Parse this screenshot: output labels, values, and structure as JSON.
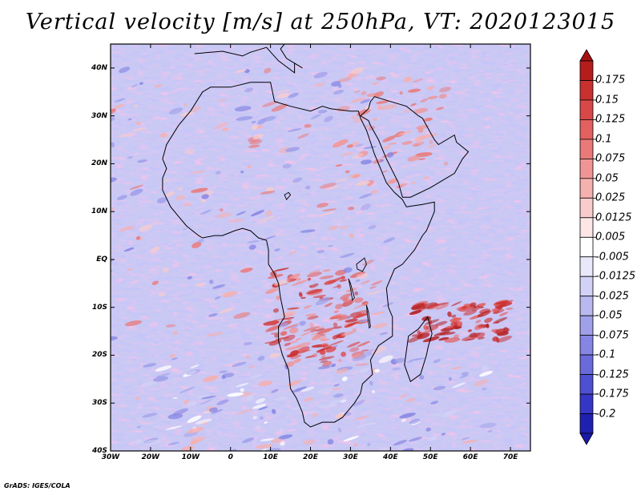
{
  "title": "Vertical velocity [m/s] at 250hPa, VT: 2020123015",
  "credit": "GrADS: IGES/COLA",
  "map": {
    "lat_range": [
      -40,
      45
    ],
    "lon_range": [
      -30,
      75
    ],
    "lat_ticks": [
      {
        "value": 40,
        "label": "40N"
      },
      {
        "value": 30,
        "label": "30N"
      },
      {
        "value": 20,
        "label": "20N"
      },
      {
        "value": 10,
        "label": "10N"
      },
      {
        "value": 0,
        "label": "EQ"
      },
      {
        "value": -10,
        "label": "10S"
      },
      {
        "value": -20,
        "label": "20S"
      },
      {
        "value": -30,
        "label": "30S"
      },
      {
        "value": -40,
        "label": "40S"
      }
    ],
    "lon_ticks": [
      {
        "value": -30,
        "label": "30W"
      },
      {
        "value": -20,
        "label": "20W"
      },
      {
        "value": -10,
        "label": "10W"
      },
      {
        "value": 0,
        "label": "0"
      },
      {
        "value": 10,
        "label": "10E"
      },
      {
        "value": 20,
        "label": "20E"
      },
      {
        "value": 30,
        "label": "30E"
      },
      {
        "value": 40,
        "label": "40E"
      },
      {
        "value": 50,
        "label": "50E"
      },
      {
        "value": 60,
        "label": "60E"
      },
      {
        "value": 70,
        "label": "70E"
      }
    ],
    "coastline": [
      [
        -17,
        21
      ],
      [
        -16,
        24
      ],
      [
        -13,
        28
      ],
      [
        -10,
        31
      ],
      [
        -7,
        35
      ],
      [
        -5,
        36
      ],
      [
        0,
        36
      ],
      [
        5,
        37
      ],
      [
        10,
        37
      ],
      [
        11,
        33
      ],
      [
        15,
        32
      ],
      [
        20,
        31
      ],
      [
        23,
        32
      ],
      [
        25,
        31.5
      ],
      [
        30,
        31
      ],
      [
        32,
        31
      ],
      [
        32.5,
        29.5
      ],
      [
        34,
        27
      ],
      [
        36,
        22
      ],
      [
        37,
        20
      ],
      [
        38,
        18
      ],
      [
        39,
        16
      ],
      [
        41,
        14
      ],
      [
        43,
        12.5
      ],
      [
        44,
        11
      ],
      [
        48,
        11.5
      ],
      [
        51,
        12
      ],
      [
        51,
        10
      ],
      [
        49,
        6
      ],
      [
        48,
        5
      ],
      [
        46,
        2
      ],
      [
        43,
        -1
      ],
      [
        41,
        -2
      ],
      [
        40,
        -4
      ],
      [
        39,
        -6
      ],
      [
        39.5,
        -10
      ],
      [
        40.5,
        -12
      ],
      [
        40.5,
        -16
      ],
      [
        37,
        -18
      ],
      [
        35,
        -21
      ],
      [
        35.5,
        -24
      ],
      [
        33,
        -26
      ],
      [
        32.5,
        -28
      ],
      [
        31,
        -30
      ],
      [
        30,
        -31
      ],
      [
        28,
        -33
      ],
      [
        26,
        -34
      ],
      [
        23,
        -34
      ],
      [
        20,
        -35
      ],
      [
        18.5,
        -34
      ],
      [
        18,
        -32
      ],
      [
        16.5,
        -29
      ],
      [
        15,
        -27
      ],
      [
        14.5,
        -23
      ],
      [
        13,
        -20
      ],
      [
        12,
        -17
      ],
      [
        12,
        -14
      ],
      [
        13.5,
        -12
      ],
      [
        12.5,
        -8
      ],
      [
        12,
        -5
      ],
      [
        11,
        -3
      ],
      [
        9.5,
        -1
      ],
      [
        9.5,
        2
      ],
      [
        9,
        4
      ],
      [
        7,
        4.5
      ],
      [
        5,
        6
      ],
      [
        3,
        6.5
      ],
      [
        1,
        6
      ],
      [
        -2,
        5
      ],
      [
        -4,
        5
      ],
      [
        -7,
        4.5
      ],
      [
        -8,
        5
      ],
      [
        -11,
        7
      ],
      [
        -13,
        9
      ],
      [
        -15,
        11
      ],
      [
        -17,
        14.5
      ],
      [
        -17,
        17
      ],
      [
        -16,
        19
      ],
      [
        -17,
        21
      ]
    ],
    "madagascar": [
      [
        49.3,
        -12
      ],
      [
        50.4,
        -15.5
      ],
      [
        49.5,
        -18
      ],
      [
        49,
        -20
      ],
      [
        47.5,
        -24
      ],
      [
        45,
        -25.5
      ],
      [
        43.5,
        -22
      ],
      [
        44,
        -19
      ],
      [
        44.5,
        -16
      ],
      [
        47,
        -14.5
      ],
      [
        49.3,
        -12
      ]
    ],
    "red_sea_arabia": [
      [
        32.5,
        30
      ],
      [
        34.5,
        29
      ],
      [
        35,
        28
      ],
      [
        37,
        25
      ],
      [
        39,
        21
      ],
      [
        42,
        16
      ],
      [
        43,
        13
      ],
      [
        45,
        13
      ],
      [
        50,
        15
      ],
      [
        53,
        16.5
      ],
      [
        56,
        18
      ],
      [
        58,
        21
      ],
      [
        59.5,
        22.5
      ],
      [
        56.5,
        24.5
      ],
      [
        56,
        26
      ],
      [
        52,
        24
      ],
      [
        51,
        25
      ],
      [
        50,
        26.5
      ],
      [
        48,
        29.5
      ],
      [
        47,
        30
      ],
      [
        44,
        32
      ],
      [
        40,
        33
      ],
      [
        36,
        34
      ],
      [
        35,
        33
      ],
      [
        34.5,
        31.5
      ],
      [
        32.5,
        30
      ]
    ],
    "europe_coast": [
      [
        -9,
        43
      ],
      [
        -2,
        43.5
      ],
      [
        3,
        42.5
      ],
      [
        5,
        43.3
      ],
      [
        9,
        44.3
      ],
      [
        12,
        41.5
      ],
      [
        16,
        39
      ],
      [
        16,
        41
      ],
      [
        18,
        40
      ],
      [
        14,
        42
      ],
      [
        12.5,
        44
      ],
      [
        13.5,
        45
      ]
    ],
    "lakes": [
      [
        [
          31.5,
          -1
        ],
        [
          33.5,
          0.3
        ],
        [
          34,
          -1
        ],
        [
          33,
          -2.5
        ],
        [
          31.7,
          -2
        ],
        [
          31.5,
          -1
        ]
      ],
      [
        [
          29.5,
          -4
        ],
        [
          30,
          -6
        ],
        [
          30.5,
          -8.5
        ],
        [
          31,
          -8
        ],
        [
          30,
          -5
        ],
        [
          29.5,
          -4
        ]
      ],
      [
        [
          34,
          -9.5
        ],
        [
          34.5,
          -11
        ],
        [
          35,
          -14
        ],
        [
          34.7,
          -14.3
        ],
        [
          34.2,
          -11.5
        ],
        [
          34,
          -9.5
        ]
      ],
      [
        [
          14,
          12.5
        ],
        [
          15,
          13.5
        ],
        [
          14.5,
          14
        ],
        [
          13.5,
          13.5
        ],
        [
          14,
          12.5
        ]
      ]
    ]
  },
  "colorbar": {
    "labels": [
      "0.175",
      "0.15",
      "0.125",
      "0.1",
      "0.075",
      "0.05",
      "0.025",
      "0.0125",
      "0.005",
      "-0.005",
      "-0.0125",
      "-0.025",
      "-0.05",
      "-0.075",
      "-0.1",
      "-0.125",
      "-0.175",
      "-0.2"
    ],
    "colors": [
      "#b51c1c",
      "#c93030",
      "#d94848",
      "#e36060",
      "#ea7a7a",
      "#f09595",
      "#f5b0b0",
      "#f9cccc",
      "#fce6e6",
      "#ffffff",
      "#e8e8fa",
      "#d2d2f6",
      "#b9b9f0",
      "#a0a0ea",
      "#8585e3",
      "#6a6adb",
      "#4f4fd2",
      "#3535c6",
      "#2020b0"
    ],
    "max_color": "#a81010",
    "min_color": "#1a1aa8"
  }
}
